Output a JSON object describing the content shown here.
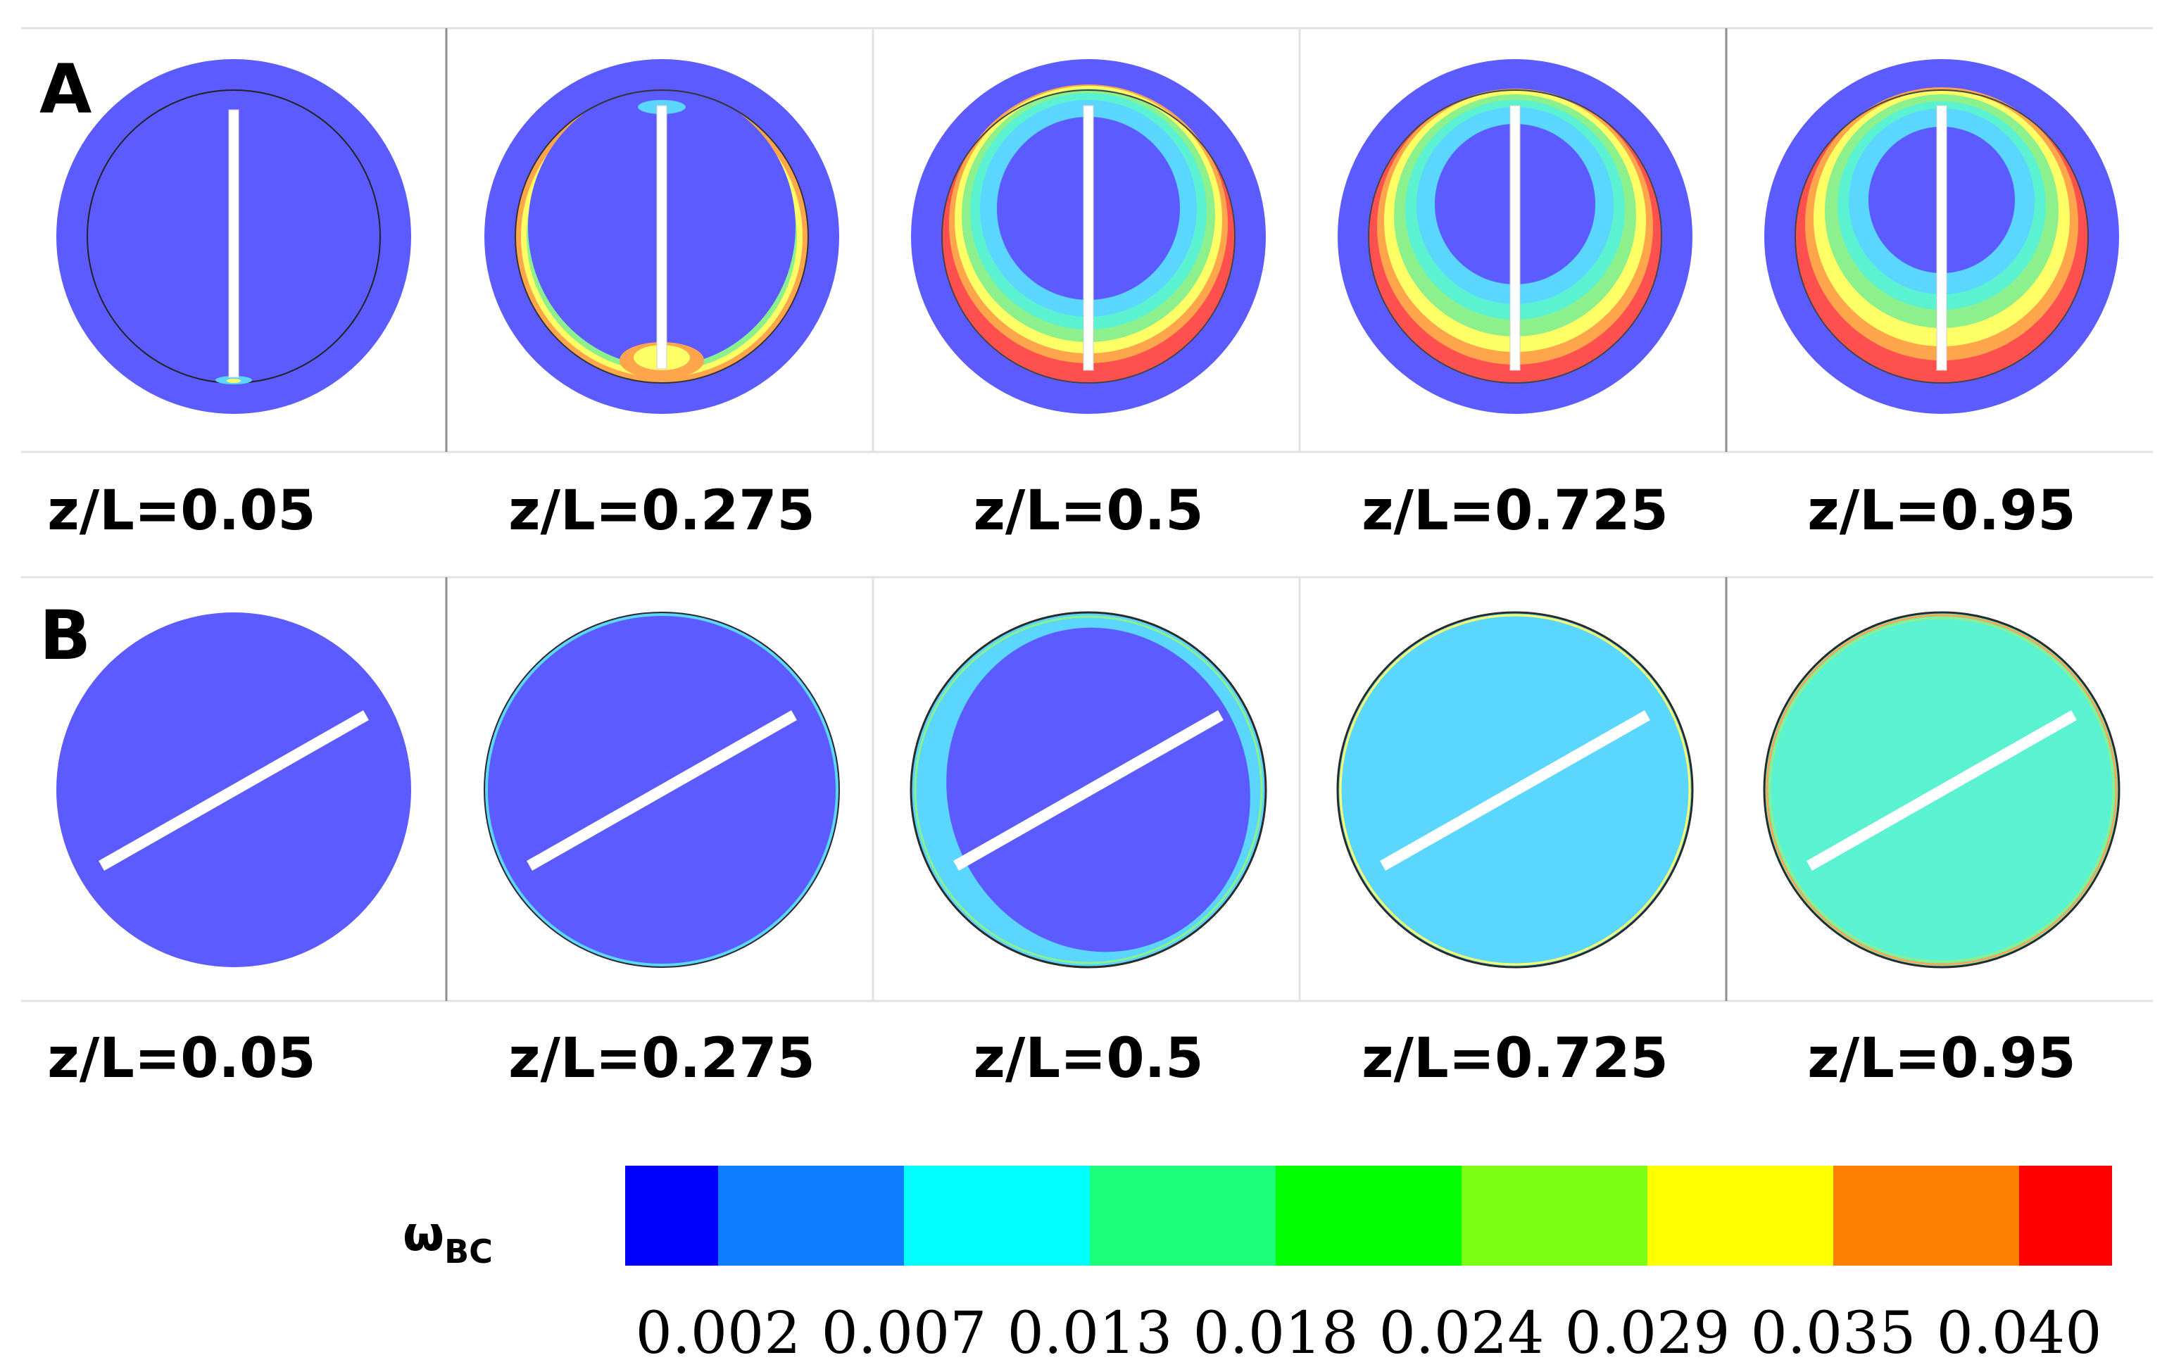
{
  "rows": [
    {
      "letter": "A",
      "baffle": "vertical",
      "labels": [
        "z/L=0.05",
        "z/L=0.275",
        "z/L=0.5",
        "z/L=0.725",
        "z/L=0.95"
      ]
    },
    {
      "letter": "B",
      "baffle": "diagonal",
      "labels": [
        "z/L=0.05",
        "z/L=0.275",
        "z/L=0.5",
        "z/L=0.725",
        "z/L=0.95"
      ]
    }
  ],
  "legend": {
    "symbol": "ω",
    "subscript": "BC",
    "ticks": [
      "0.002",
      "0.007",
      "0.013",
      "0.018",
      "0.024",
      "0.029",
      "0.035",
      "0.040"
    ],
    "colors": [
      "#0000ff",
      "#0f7dff",
      "#00ffff",
      "#1bff7a",
      "#00ff00",
      "#7dff15",
      "#ffff00",
      "#ff7f00",
      "#ff0000"
    ]
  },
  "palette": {
    "base": "#5b5bff",
    "cyan": "#5bd7ff",
    "aqua": "#5bf2d2",
    "green": "#8cf08c",
    "yellow": "#ffff66",
    "orange": "#ffa64d",
    "red": "#ff5050",
    "baffle": "#ffffff"
  }
}
